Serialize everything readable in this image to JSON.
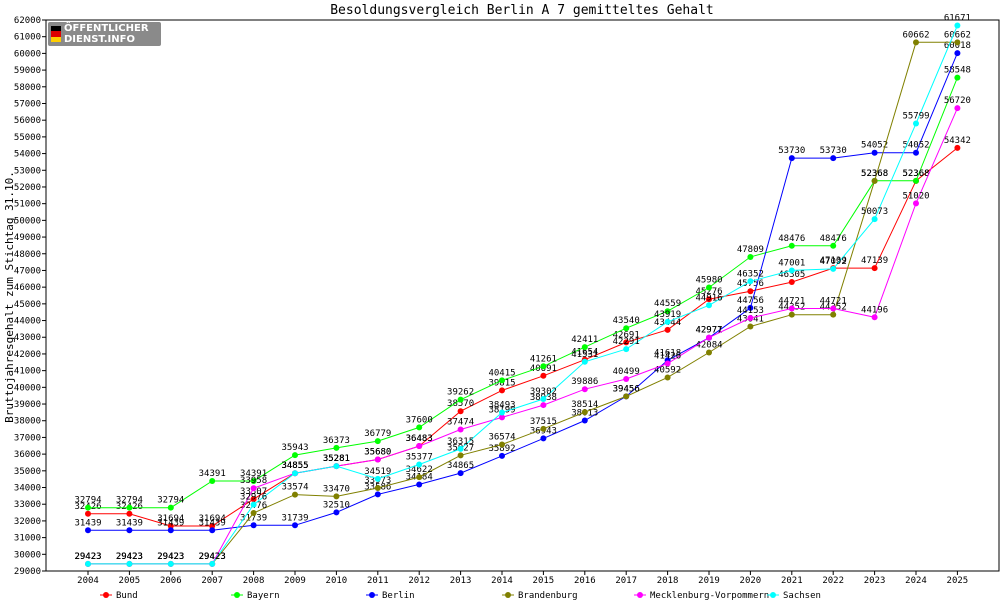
{
  "logo": {
    "line1": "ÖFFENTLICHER",
    "line2": "DIENST.INFO"
  },
  "chart_data": {
    "type": "line",
    "title": "Besoldungsvergleich Berlin A 7 gemitteltes Gehalt",
    "xlabel": "",
    "ylabel": "Bruttojahresgehalt zum Stichtag 31.10.",
    "x": [
      "2004",
      "2005",
      "2006",
      "2007",
      "2008",
      "2009",
      "2010",
      "2011",
      "2012",
      "2013",
      "2014",
      "2015",
      "2016",
      "2017",
      "2018",
      "2019",
      "2020",
      "2021",
      "2022",
      "2023",
      "2024",
      "2025"
    ],
    "ylim": [
      29000,
      62000
    ],
    "ytick_step": 1000,
    "grid": false,
    "legend_position": "bottom",
    "series": [
      {
        "name": "Bund",
        "color": "#ff0000",
        "values": [
          32426,
          32426,
          31694,
          31694,
          33307,
          34855,
          35281,
          35680,
          36483,
          38570,
          39815,
          40691,
          41654,
          42691,
          43444,
          45276,
          45756,
          46305,
          47139,
          47139,
          52368,
          54342
        ]
      },
      {
        "name": "Bayern",
        "color": "#00ff00",
        "values": [
          32794,
          32794,
          32794,
          34391,
          34391,
          35943,
          36373,
          36779,
          37600,
          39262,
          40415,
          41261,
          42411,
          43540,
          44559,
          45980,
          47809,
          48476,
          48476,
          52368,
          52368,
          58548
        ]
      },
      {
        "name": "Berlin",
        "color": "#0000ff",
        "values": [
          31439,
          31439,
          31439,
          31439,
          31739,
          31739,
          32510,
          33586,
          34184,
          34865,
          35892,
          36943,
          38013,
          39456,
          41618,
          42971,
          44756,
          53730,
          53730,
          54052,
          54052,
          60018
        ]
      },
      {
        "name": "Brandenburg",
        "color": "#808000",
        "values": [
          29423,
          29423,
          29423,
          29423,
          32476,
          33574,
          33470,
          33973,
          34622,
          35927,
          36574,
          37515,
          38514,
          39456,
          40592,
          42084,
          43641,
          44352,
          44352,
          52368,
          60662,
          60662
        ]
      },
      {
        "name": "Mecklenburg-Vorpommern",
        "color": "#ff00ff",
        "values": [
          29423,
          29423,
          29423,
          29423,
          33958,
          34855,
          35281,
          35680,
          36483,
          37474,
          38199,
          38938,
          39886,
          40499,
          41426,
          42977,
          44153,
          44721,
          44721,
          44196,
          51020,
          56720
        ]
      },
      {
        "name": "Sachsen",
        "color": "#00ffff",
        "values": [
          29423,
          29423,
          29423,
          29423,
          32976,
          34855,
          35281,
          34519,
          35377,
          36315,
          38493,
          39302,
          41531,
          42291,
          43919,
          44916,
          46352,
          47001,
          47092,
          50073,
          55799,
          61671
        ]
      }
    ]
  }
}
